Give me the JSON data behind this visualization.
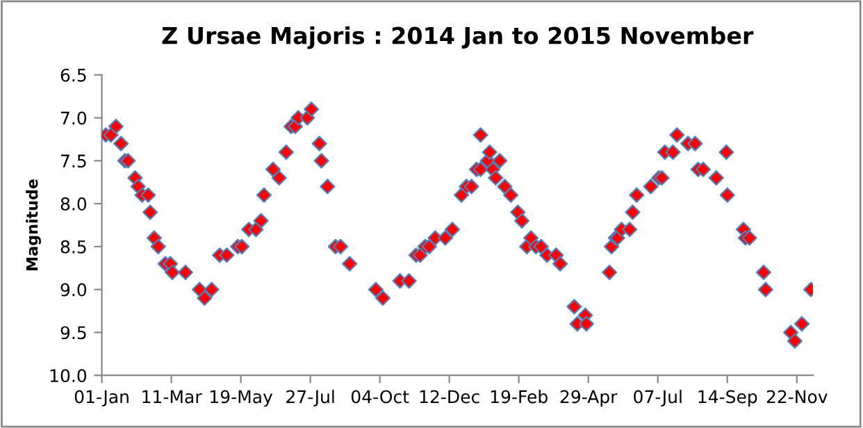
{
  "chart_data": {
    "type": "scatter",
    "title": "Z Ursae Majoris : 2014 Jan to 2015 November",
    "ylabel": "Magnitude",
    "x": [
      "2014-01-05",
      "2014-01-10",
      "2014-01-15",
      "2014-01-20",
      "2014-01-24",
      "2014-01-27",
      "2014-02-03",
      "2014-02-06",
      "2014-02-10",
      "2014-02-16",
      "2014-02-18",
      "2014-02-22",
      "2014-02-26",
      "2014-03-05",
      "2014-03-10",
      "2014-03-12",
      "2014-03-25",
      "2014-04-08",
      "2014-04-13",
      "2014-04-20",
      "2014-04-28",
      "2014-05-05",
      "2014-05-16",
      "2014-05-20",
      "2014-05-27",
      "2014-06-03",
      "2014-06-08",
      "2014-06-11",
      "2014-06-20",
      "2014-06-26",
      "2014-07-03",
      "2014-07-08",
      "2014-07-12",
      "2014-07-15",
      "2014-07-24",
      "2014-07-28",
      "2014-08-05",
      "2014-08-07",
      "2014-08-13",
      "2014-08-21",
      "2014-08-26",
      "2014-09-04",
      "2014-09-30",
      "2014-10-07",
      "2014-10-24",
      "2014-11-02",
      "2014-11-09",
      "2014-11-13",
      "2014-11-18",
      "2014-11-22",
      "2014-11-28",
      "2014-12-08",
      "2014-12-15",
      "2014-12-24",
      "2014-12-29",
      "2015-01-03",
      "2015-01-08",
      "2015-01-12",
      "2015-01-12",
      "2015-01-19",
      "2015-01-21",
      "2015-01-24",
      "2015-01-27",
      "2015-01-31",
      "2015-02-05",
      "2015-02-11",
      "2015-02-18",
      "2015-02-22",
      "2015-02-27",
      "2015-03-03",
      "2015-03-08",
      "2015-03-13",
      "2015-03-19",
      "2015-03-28",
      "2015-04-01",
      "2015-04-15",
      "2015-04-18",
      "2015-04-26",
      "2015-04-27",
      "2015-05-20",
      "2015-05-22",
      "2015-05-26",
      "2015-05-28",
      "2015-06-01",
      "2015-06-09",
      "2015-06-12",
      "2015-06-16",
      "2015-06-30",
      "2015-07-08",
      "2015-07-11",
      "2015-07-14",
      "2015-07-22",
      "2015-07-26",
      "2015-08-06",
      "2015-08-13",
      "2015-08-16",
      "2015-08-21",
      "2015-09-03",
      "2015-09-13",
      "2015-09-14",
      "2015-09-30",
      "2015-10-02",
      "2015-10-06",
      "2015-10-20",
      "2015-10-22",
      "2015-11-16",
      "2015-11-20",
      "2015-11-27",
      "2015-12-06"
    ],
    "series": [
      {
        "color": "#ff0000",
        "values": [
          7.2,
          7.2,
          7.1,
          7.3,
          7.5,
          7.5,
          7.7,
          7.8,
          7.9,
          7.9,
          8.1,
          8.4,
          8.5,
          8.7,
          8.7,
          8.8,
          8.8,
          9.0,
          9.1,
          9.0,
          8.6,
          8.6,
          8.5,
          8.5,
          8.3,
          8.3,
          8.2,
          7.9,
          7.6,
          7.7,
          7.4,
          7.1,
          7.1,
          7.0,
          7.0,
          6.9,
          7.3,
          7.5,
          7.8,
          8.5,
          8.5,
          8.7,
          9.0,
          9.1,
          8.9,
          8.9,
          8.6,
          8.6,
          8.5,
          8.5,
          8.4,
          8.4,
          8.3,
          7.9,
          7.8,
          7.8,
          7.6,
          7.6,
          7.2,
          7.5,
          7.4,
          7.6,
          7.7,
          7.5,
          7.8,
          7.9,
          8.1,
          8.2,
          8.5,
          8.4,
          8.5,
          8.5,
          8.6,
          8.6,
          8.7,
          9.2,
          9.4,
          9.3,
          9.4,
          8.8,
          8.5,
          8.4,
          8.4,
          8.3,
          8.3,
          8.1,
          7.9,
          7.8,
          7.7,
          7.7,
          7.4,
          7.4,
          7.2,
          7.3,
          7.3,
          7.6,
          7.6,
          7.7,
          7.4,
          7.9,
          8.3,
          8.4,
          8.4,
          8.8,
          9.0,
          9.5,
          9.6,
          9.4,
          9.0
        ]
      }
    ],
    "xlim": [
      "2014-01-01",
      "2015-12-08"
    ],
    "xticks": [
      {
        "value": "2014-01-01",
        "label": "01-Jan"
      },
      {
        "value": "2014-03-11",
        "label": "11-Mar"
      },
      {
        "value": "2014-05-19",
        "label": "19-May"
      },
      {
        "value": "2014-07-27",
        "label": "27-Jul"
      },
      {
        "value": "2014-10-04",
        "label": "04-Oct"
      },
      {
        "value": "2014-12-12",
        "label": "12-Dec"
      },
      {
        "value": "2015-02-19",
        "label": "19-Feb"
      },
      {
        "value": "2015-04-29",
        "label": "29-Apr"
      },
      {
        "value": "2015-07-07",
        "label": "07-Jul"
      },
      {
        "value": "2015-09-14",
        "label": "14-Sep"
      },
      {
        "value": "2015-11-22",
        "label": "22-Nov"
      }
    ],
    "ylim": [
      10.0,
      6.5
    ],
    "yticks": [
      {
        "value": 6.5,
        "label": "6.5"
      },
      {
        "value": 7.0,
        "label": "7.0"
      },
      {
        "value": 7.5,
        "label": "7.5"
      },
      {
        "value": 8.0,
        "label": "8.0"
      },
      {
        "value": 8.5,
        "label": "8.5"
      },
      {
        "value": 9.0,
        "label": "9.0"
      },
      {
        "value": 9.5,
        "label": "9.5"
      },
      {
        "value": 10.0,
        "label": "10.0"
      }
    ],
    "grid": false,
    "legend": false,
    "marker": "diamond"
  }
}
